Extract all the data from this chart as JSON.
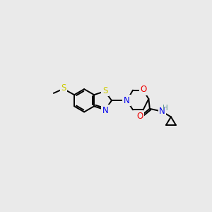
{
  "bg_color": "#eaeaea",
  "bond_color": "#000000",
  "bond_width": 1.4,
  "S_color": "#cccc00",
  "N_color": "#0000ee",
  "O_color": "#ee0000",
  "H_color": "#669999",
  "font_size": 8.5,
  "fig_size": [
    3.0,
    3.0
  ],
  "dpi": 100,
  "xlim": [
    0,
    300
  ],
  "ylim": [
    0,
    300
  ]
}
